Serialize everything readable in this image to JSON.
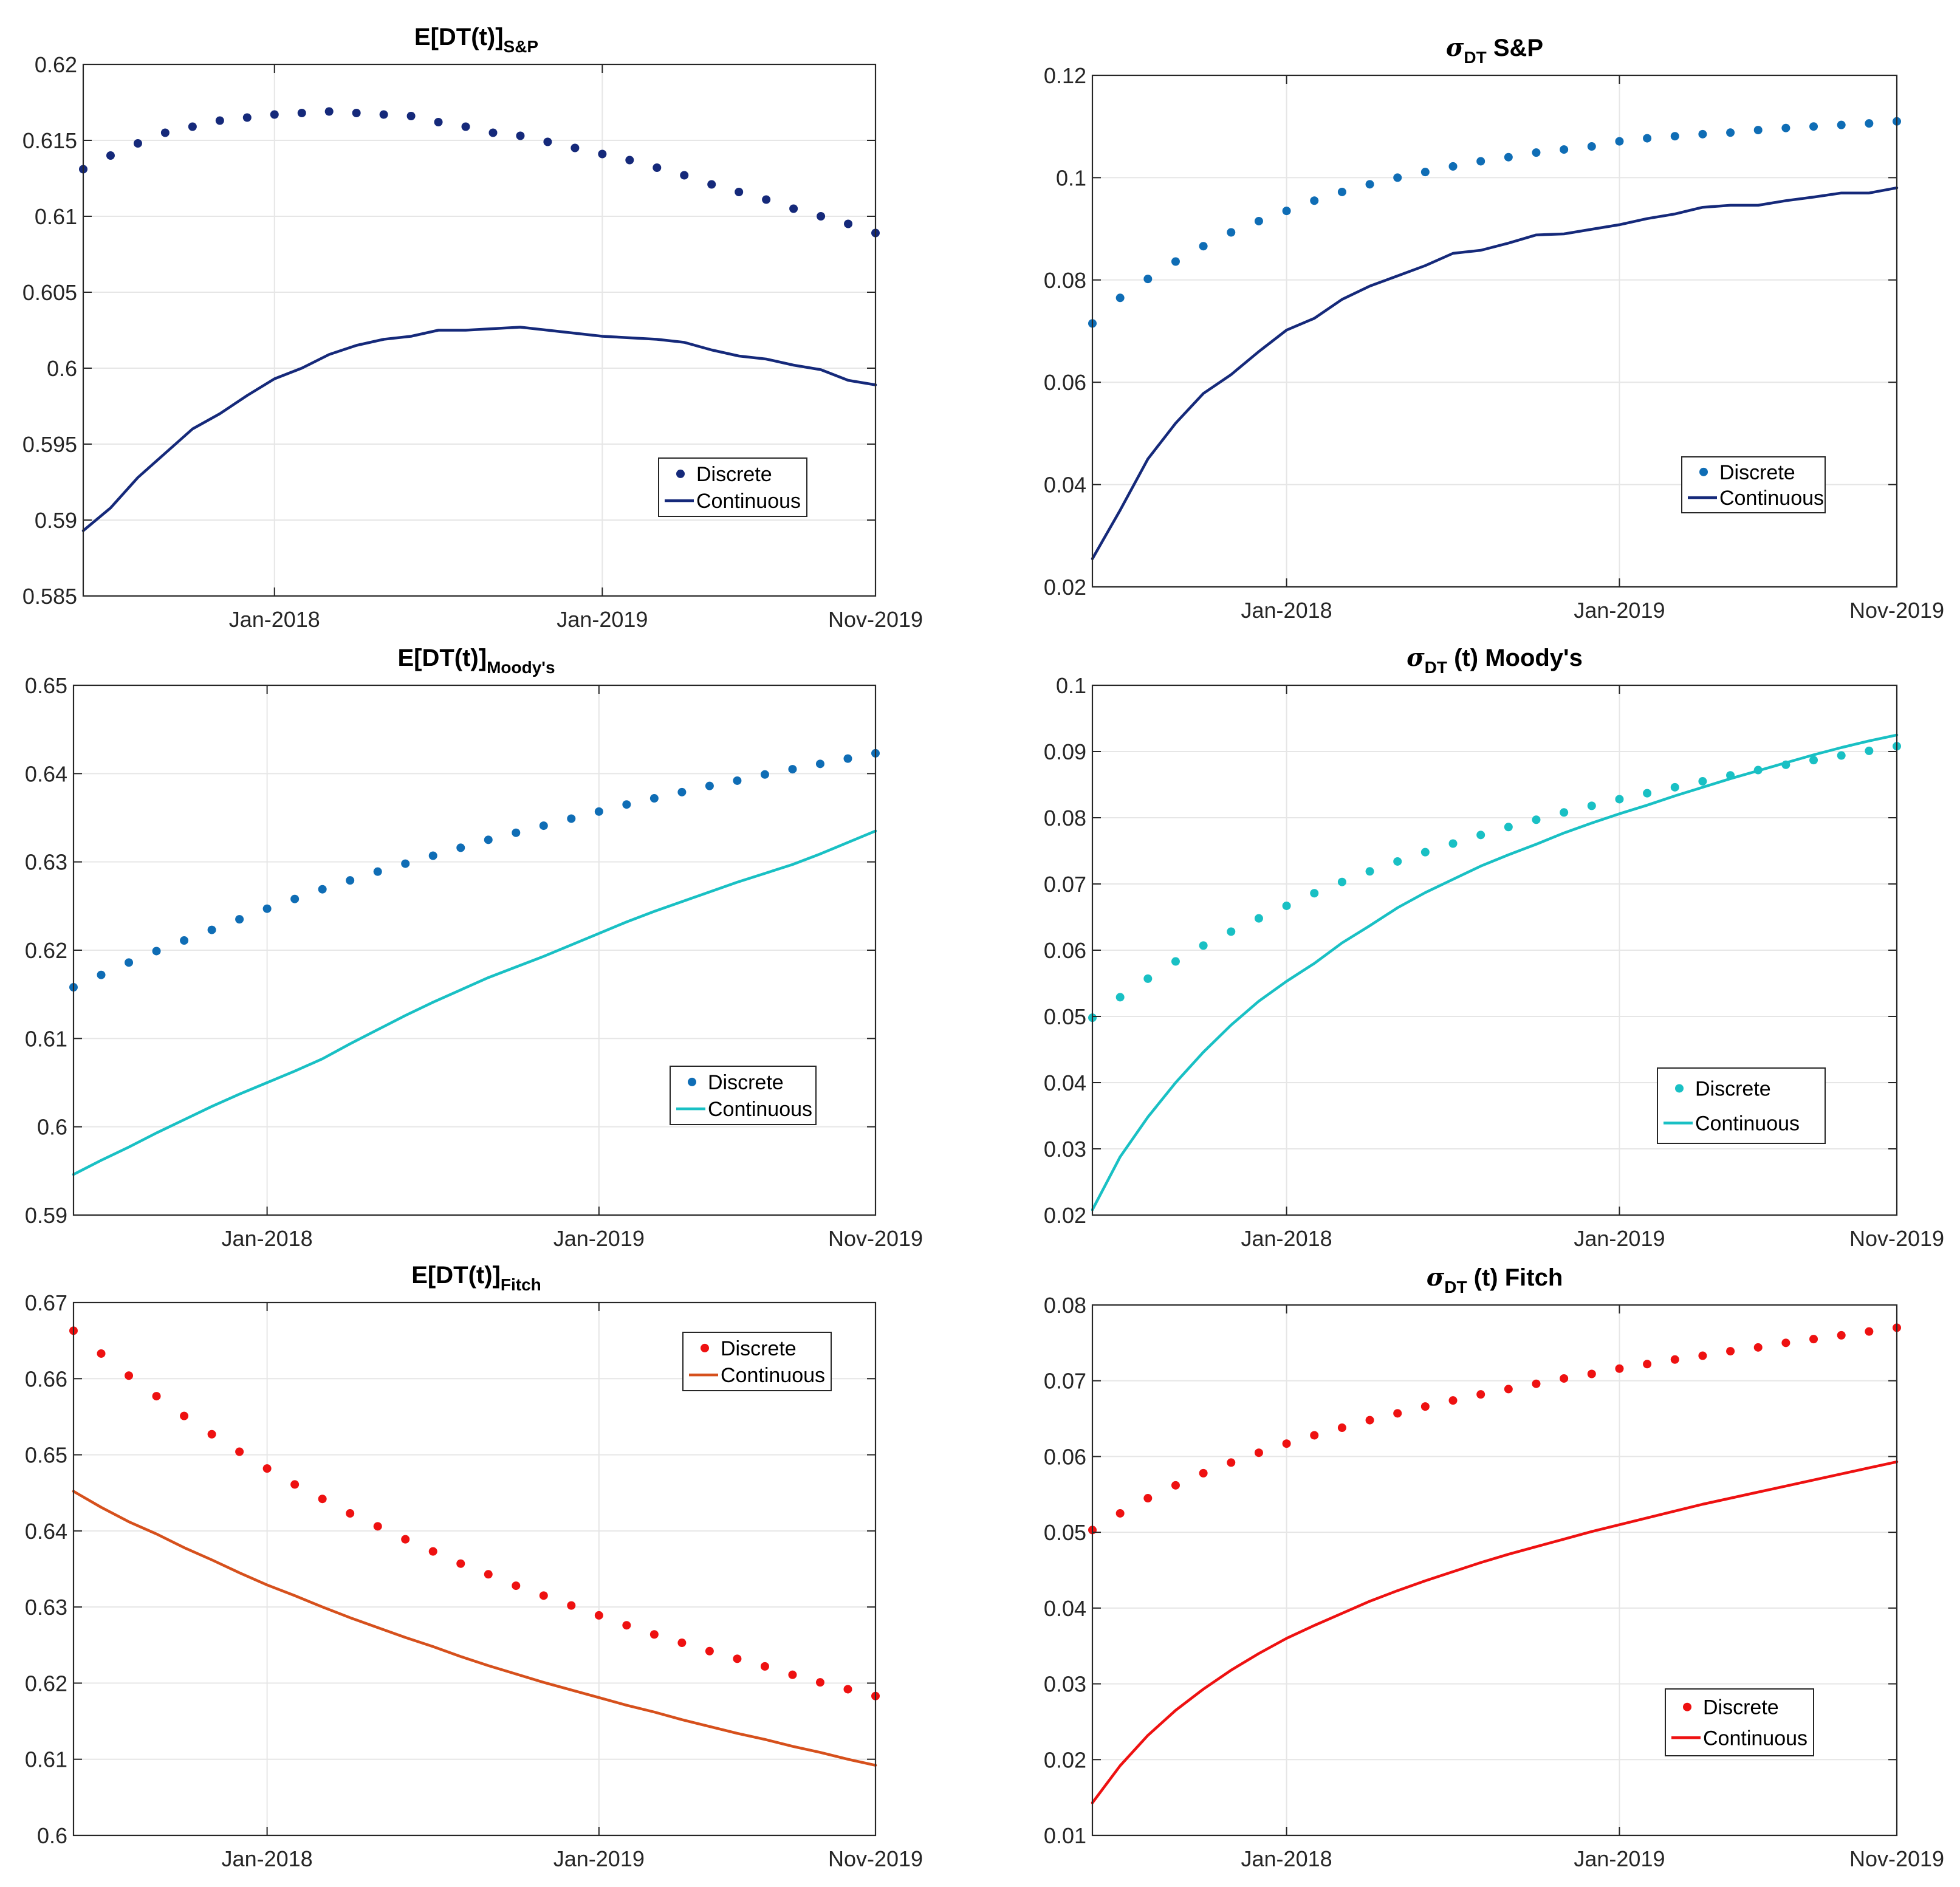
{
  "chart_data": [
    {
      "type": "scatter+line",
      "title_main": "E[DT(t)]",
      "title_sub": "S&P",
      "title_greek": "",
      "x_tick_labels": [
        "Jan-2018",
        "Jan-2019",
        "Nov-2019"
      ],
      "x_tick_months": [
        7,
        19,
        29
      ],
      "ylim": [
        0.585,
        0.62
      ],
      "yticks": [
        0.585,
        0.59,
        0.595,
        0.6,
        0.605,
        0.61,
        0.615,
        0.62
      ],
      "ytick_labels": [
        "0.585",
        "0.59",
        "0.595",
        "0.6",
        "0.605",
        "0.61",
        "0.615",
        "0.62"
      ],
      "legend": {
        "position": "lower-right",
        "discrete_label": "Discrete",
        "continuous_label": "Continuous"
      },
      "colors": {
        "discrete": "#15297a",
        "continuous": "#15297a"
      },
      "series": [
        {
          "name": "Discrete",
          "style": "dots",
          "values": [
            0.6131,
            0.614,
            0.6148,
            0.6155,
            0.6159,
            0.6163,
            0.6165,
            0.6167,
            0.6168,
            0.6169,
            0.6168,
            0.6167,
            0.6166,
            0.6162,
            0.6159,
            0.6155,
            0.6153,
            0.6149,
            0.6145,
            0.6141,
            0.6137,
            0.6132,
            0.6127,
            0.6121,
            0.6116,
            0.6111,
            0.6105,
            0.61,
            0.6095,
            0.6089
          ]
        },
        {
          "name": "Continuous",
          "style": "line",
          "values": [
            0.5893,
            0.5908,
            0.5928,
            0.5944,
            0.596,
            0.597,
            0.5982,
            0.5993,
            0.6,
            0.6009,
            0.6015,
            0.6019,
            0.6021,
            0.6025,
            0.6025,
            0.6026,
            0.6027,
            0.6025,
            0.6023,
            0.6021,
            0.602,
            0.6019,
            0.6017,
            0.6012,
            0.6008,
            0.6006,
            0.6002,
            0.5999,
            0.5992,
            0.5989
          ]
        }
      ]
    },
    {
      "type": "scatter+line",
      "title_main": "S&P",
      "title_sub": "DT",
      "title_greek": "σ",
      "x_tick_labels": [
        "Jan-2018",
        "Jan-2019",
        "Nov-2019"
      ],
      "x_tick_months": [
        7,
        19,
        29
      ],
      "ylim": [
        0.02,
        0.12
      ],
      "yticks": [
        0.02,
        0.04,
        0.06,
        0.08,
        0.1,
        0.12
      ],
      "ytick_labels": [
        "0.02",
        "0.04",
        "0.06",
        "0.08",
        "0.1",
        "0.12"
      ],
      "legend": {
        "position": "lower-right",
        "discrete_label": "Discrete",
        "continuous_label": "Continuous"
      },
      "colors": {
        "discrete": "#0f6db5",
        "continuous": "#15297a"
      },
      "series": [
        {
          "name": "Discrete",
          "style": "dots",
          "values": [
            0.0715,
            0.0765,
            0.0802,
            0.0836,
            0.0866,
            0.0893,
            0.0915,
            0.0935,
            0.0955,
            0.0972,
            0.0987,
            0.1,
            0.1011,
            0.1022,
            0.1032,
            0.104,
            0.1049,
            0.1055,
            0.1061,
            0.1071,
            0.1077,
            0.1081,
            0.1085,
            0.1088,
            0.1093,
            0.1097,
            0.11,
            0.1103,
            0.1106,
            0.111
          ]
        },
        {
          "name": "Continuous",
          "style": "line",
          "values": [
            0.0255,
            0.035,
            0.045,
            0.052,
            0.0578,
            0.0615,
            0.066,
            0.0702,
            0.0725,
            0.0762,
            0.0788,
            0.0808,
            0.0828,
            0.0852,
            0.0858,
            0.0872,
            0.0888,
            0.089,
            0.0899,
            0.0908,
            0.092,
            0.0929,
            0.0942,
            0.0946,
            0.0946,
            0.0955,
            0.0962,
            0.097,
            0.097,
            0.098
          ]
        }
      ]
    },
    {
      "type": "scatter+line",
      "title_main": "E[DT(t)]",
      "title_sub": "Moody's",
      "title_greek": "",
      "x_tick_labels": [
        "Jan-2018",
        "Jan-2019",
        "Nov-2019"
      ],
      "x_tick_months": [
        7,
        19,
        29
      ],
      "ylim": [
        0.59,
        0.65
      ],
      "yticks": [
        0.59,
        0.6,
        0.61,
        0.62,
        0.63,
        0.64,
        0.65
      ],
      "ytick_labels": [
        "0.59",
        "0.6",
        "0.61",
        "0.62",
        "0.63",
        "0.64",
        "0.65"
      ],
      "legend": {
        "position": "lower-right",
        "discrete_label": "Discrete",
        "continuous_label": "Continuous"
      },
      "colors": {
        "discrete": "#0f6db5",
        "continuous": "#19c0c4"
      },
      "series": [
        {
          "name": "Discrete",
          "style": "dots",
          "values": [
            0.6158,
            0.6172,
            0.6186,
            0.6199,
            0.6211,
            0.6223,
            0.6235,
            0.6247,
            0.6258,
            0.6269,
            0.6279,
            0.6289,
            0.6298,
            0.6307,
            0.6316,
            0.6325,
            0.6333,
            0.6341,
            0.6349,
            0.6357,
            0.6365,
            0.6372,
            0.6379,
            0.6386,
            0.6392,
            0.6399,
            0.6405,
            0.6411,
            0.6417,
            0.6423
          ]
        },
        {
          "name": "Continuous",
          "style": "line",
          "values": [
            0.5946,
            0.5962,
            0.5977,
            0.5993,
            0.6008,
            0.6023,
            0.6037,
            0.605,
            0.6063,
            0.6077,
            0.6094,
            0.611,
            0.6126,
            0.6141,
            0.6155,
            0.6169,
            0.6181,
            0.6193,
            0.6206,
            0.6219,
            0.6232,
            0.6244,
            0.6255,
            0.6266,
            0.6277,
            0.6287,
            0.6297,
            0.6309,
            0.6322,
            0.6335
          ]
        }
      ]
    },
    {
      "type": "scatter+line",
      "title_main": "(t) Moody's",
      "title_sub": "DT",
      "title_greek": "σ",
      "x_tick_labels": [
        "Jan-2018",
        "Jan-2019",
        "Nov-2019"
      ],
      "x_tick_months": [
        7,
        19,
        29
      ],
      "ylim": [
        0.02,
        0.1
      ],
      "yticks": [
        0.02,
        0.03,
        0.04,
        0.05,
        0.06,
        0.07,
        0.08,
        0.09,
        0.1
      ],
      "ytick_labels": [
        "0.02",
        "0.03",
        "0.04",
        "0.05",
        "0.06",
        "0.07",
        "0.08",
        "0.09",
        "0.1"
      ],
      "legend": {
        "position": "lower-right",
        "discrete_label": "Discrete",
        "continuous_label": "Continuous"
      },
      "colors": {
        "discrete": "#19c0c4",
        "continuous": "#19c0c4"
      },
      "series": [
        {
          "name": "Discrete",
          "style": "dots",
          "values": [
            0.0498,
            0.0529,
            0.0557,
            0.0583,
            0.0607,
            0.0628,
            0.0648,
            0.0667,
            0.0686,
            0.0703,
            0.0719,
            0.0734,
            0.0748,
            0.0761,
            0.0774,
            0.0786,
            0.0797,
            0.0808,
            0.0818,
            0.0828,
            0.0837,
            0.0846,
            0.0855,
            0.0864,
            0.0872,
            0.088,
            0.0887,
            0.0894,
            0.0901,
            0.0908
          ]
        },
        {
          "name": "Continuous",
          "style": "line",
          "values": [
            0.0208,
            0.0288,
            0.0348,
            0.04,
            0.0446,
            0.0487,
            0.0523,
            0.0553,
            0.058,
            0.0611,
            0.0637,
            0.0664,
            0.0687,
            0.0707,
            0.0727,
            0.0744,
            0.076,
            0.0777,
            0.0792,
            0.0806,
            0.0819,
            0.0833,
            0.0846,
            0.0859,
            0.0871,
            0.0883,
            0.0895,
            0.0906,
            0.0916,
            0.0925
          ]
        }
      ]
    },
    {
      "type": "scatter+line",
      "title_main": "E[DT(t)]",
      "title_sub": "Fitch",
      "title_greek": "",
      "x_tick_labels": [
        "Jan-2018",
        "Jan-2019",
        "Nov-2019"
      ],
      "x_tick_months": [
        7,
        19,
        29
      ],
      "ylim": [
        0.6,
        0.67
      ],
      "yticks": [
        0.6,
        0.61,
        0.62,
        0.63,
        0.64,
        0.65,
        0.66,
        0.67
      ],
      "ytick_labels": [
        "0.6",
        "0.61",
        "0.62",
        "0.63",
        "0.64",
        "0.65",
        "0.66",
        "0.67"
      ],
      "legend": {
        "position": "top-right",
        "discrete_label": "Discrete",
        "continuous_label": "Continuous"
      },
      "colors": {
        "discrete": "#ee1111",
        "continuous": "#d6501c"
      },
      "series": [
        {
          "name": "Discrete",
          "style": "dots",
          "values": [
            0.6663,
            0.6633,
            0.6604,
            0.6577,
            0.6551,
            0.6527,
            0.6504,
            0.6482,
            0.6461,
            0.6442,
            0.6423,
            0.6406,
            0.6389,
            0.6373,
            0.6357,
            0.6343,
            0.6328,
            0.6315,
            0.6302,
            0.6289,
            0.6276,
            0.6264,
            0.6253,
            0.6242,
            0.6232,
            0.6222,
            0.6211,
            0.6201,
            0.6192,
            0.6183
          ]
        },
        {
          "name": "Continuous",
          "style": "line",
          "values": [
            0.6452,
            0.6431,
            0.6412,
            0.6396,
            0.6378,
            0.6362,
            0.6345,
            0.6329,
            0.6315,
            0.63,
            0.6286,
            0.6273,
            0.626,
            0.6248,
            0.6235,
            0.6223,
            0.6212,
            0.6201,
            0.6191,
            0.6181,
            0.6171,
            0.6162,
            0.6152,
            0.6143,
            0.6134,
            0.6126,
            0.6117,
            0.6109,
            0.61,
            0.6092
          ]
        }
      ]
    },
    {
      "type": "scatter+line",
      "title_main": "(t) Fitch",
      "title_sub": "DT",
      "title_greek": "σ",
      "x_tick_labels": [
        "Jan-2018",
        "Jan-2019",
        "Nov-2019"
      ],
      "x_tick_months": [
        7,
        19,
        29
      ],
      "ylim": [
        0.01,
        0.08
      ],
      "yticks": [
        0.01,
        0.02,
        0.03,
        0.04,
        0.05,
        0.06,
        0.07,
        0.08
      ],
      "ytick_labels": [
        "0.01",
        "0.02",
        "0.03",
        "0.04",
        "0.05",
        "0.06",
        "0.07",
        "0.08"
      ],
      "legend": {
        "position": "lower-right",
        "discrete_label": "Discrete",
        "continuous_label": "Continuous"
      },
      "colors": {
        "discrete": "#ee1111",
        "continuous": "#ee1111"
      },
      "series": [
        {
          "name": "Discrete",
          "style": "dots",
          "values": [
            0.0503,
            0.0525,
            0.0545,
            0.0562,
            0.0578,
            0.0592,
            0.0605,
            0.0617,
            0.0628,
            0.0638,
            0.0648,
            0.0657,
            0.0666,
            0.0674,
            0.0682,
            0.0689,
            0.0696,
            0.0703,
            0.0709,
            0.0716,
            0.0722,
            0.0728,
            0.0733,
            0.0739,
            0.0744,
            0.075,
            0.0755,
            0.076,
            0.0765,
            0.077
          ]
        },
        {
          "name": "Continuous",
          "style": "line",
          "values": [
            0.0143,
            0.0192,
            0.0232,
            0.0265,
            0.0293,
            0.0318,
            0.034,
            0.036,
            0.0377,
            0.0393,
            0.0409,
            0.0423,
            0.0436,
            0.0448,
            0.046,
            0.0471,
            0.0481,
            0.0491,
            0.0501,
            0.051,
            0.0519,
            0.0528,
            0.0537,
            0.0545,
            0.0553,
            0.0561,
            0.0569,
            0.0577,
            0.0585,
            0.0593
          ]
        }
      ]
    }
  ]
}
